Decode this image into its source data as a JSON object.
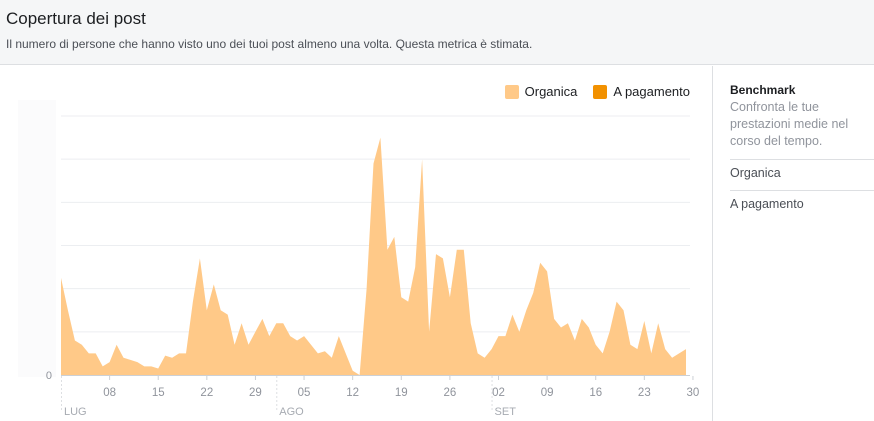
{
  "header": {
    "title": "Copertura dei post",
    "subtitle": "Il numero di persone che hanno visto uno dei tuoi post almeno una volta. Questa metrica è stimata."
  },
  "legend": {
    "organic_label": "Organica",
    "paid_label": "A pagamento"
  },
  "colors": {
    "organic": "#ffc988",
    "paid": "#f29100",
    "grid": "#eceef1",
    "axis_text": "#90949c"
  },
  "sidebar": {
    "title": "Benchmark",
    "description": "Confronta le tue prestazioni medie nel corso del tempo.",
    "items": [
      {
        "label": "Organica"
      },
      {
        "label": "A pagamento"
      }
    ]
  },
  "chart_data": {
    "type": "area",
    "ylim": [
      0,
      60
    ],
    "y_ticks": [
      0
    ],
    "gridlines": [
      10,
      20,
      30,
      40,
      50,
      60
    ],
    "x_ticks": [
      {
        "label": "08",
        "day": 7
      },
      {
        "label": "15",
        "day": 14
      },
      {
        "label": "22",
        "day": 21
      },
      {
        "label": "29",
        "day": 28
      },
      {
        "label": "05",
        "day": 35
      },
      {
        "label": "12",
        "day": 42
      },
      {
        "label": "19",
        "day": 49
      },
      {
        "label": "26",
        "day": 56
      },
      {
        "label": "02",
        "day": 63
      },
      {
        "label": "09",
        "day": 70
      },
      {
        "label": "16",
        "day": 77
      },
      {
        "label": "23",
        "day": 84
      },
      {
        "label": "30",
        "day": 91
      }
    ],
    "months": [
      {
        "label": "LUG",
        "day": 0
      },
      {
        "label": "AGO",
        "day": 31
      },
      {
        "label": "SET",
        "day": 62
      }
    ],
    "series": [
      {
        "name": "Organica",
        "values": [
          22.5,
          15,
          8,
          7,
          5,
          5,
          2,
          3,
          7,
          4,
          3.5,
          3,
          2,
          2,
          1.5,
          4.5,
          4,
          5,
          5,
          17,
          27,
          15,
          21,
          15,
          14,
          7,
          12,
          7,
          10,
          13,
          9,
          12,
          12,
          9,
          8,
          9,
          7,
          5,
          5.5,
          4,
          9,
          5,
          1,
          0,
          20,
          49,
          55,
          29,
          32,
          18,
          17,
          25,
          50,
          10,
          28,
          27,
          18,
          29,
          29,
          12,
          5,
          4,
          6,
          9,
          9,
          14,
          10,
          15,
          19,
          26,
          24,
          13,
          11,
          12,
          8,
          13,
          11,
          7,
          5,
          10,
          17,
          15,
          7,
          6,
          12.5,
          5,
          12,
          6,
          4,
          5,
          6
        ]
      },
      {
        "name": "A pagamento",
        "values": [
          0,
          0,
          0,
          0,
          0,
          0,
          0,
          0,
          0,
          0,
          0,
          0,
          0,
          0,
          0,
          0,
          0,
          0,
          0,
          0,
          0,
          0,
          0,
          0,
          0,
          0,
          0,
          0,
          0,
          0,
          0,
          0,
          0,
          0,
          0,
          0,
          0,
          0,
          0,
          0,
          0,
          0,
          0,
          0,
          0,
          0,
          0,
          0,
          0,
          0,
          0,
          0,
          0,
          0,
          0,
          0,
          0,
          0,
          0,
          0,
          0,
          0,
          0,
          0,
          0,
          0,
          0,
          0,
          0,
          0,
          0,
          0,
          0,
          0,
          0,
          0,
          0,
          0,
          0,
          0,
          0,
          0,
          0,
          0,
          0,
          0,
          0,
          0,
          0,
          0,
          0,
          0
        ]
      }
    ]
  }
}
